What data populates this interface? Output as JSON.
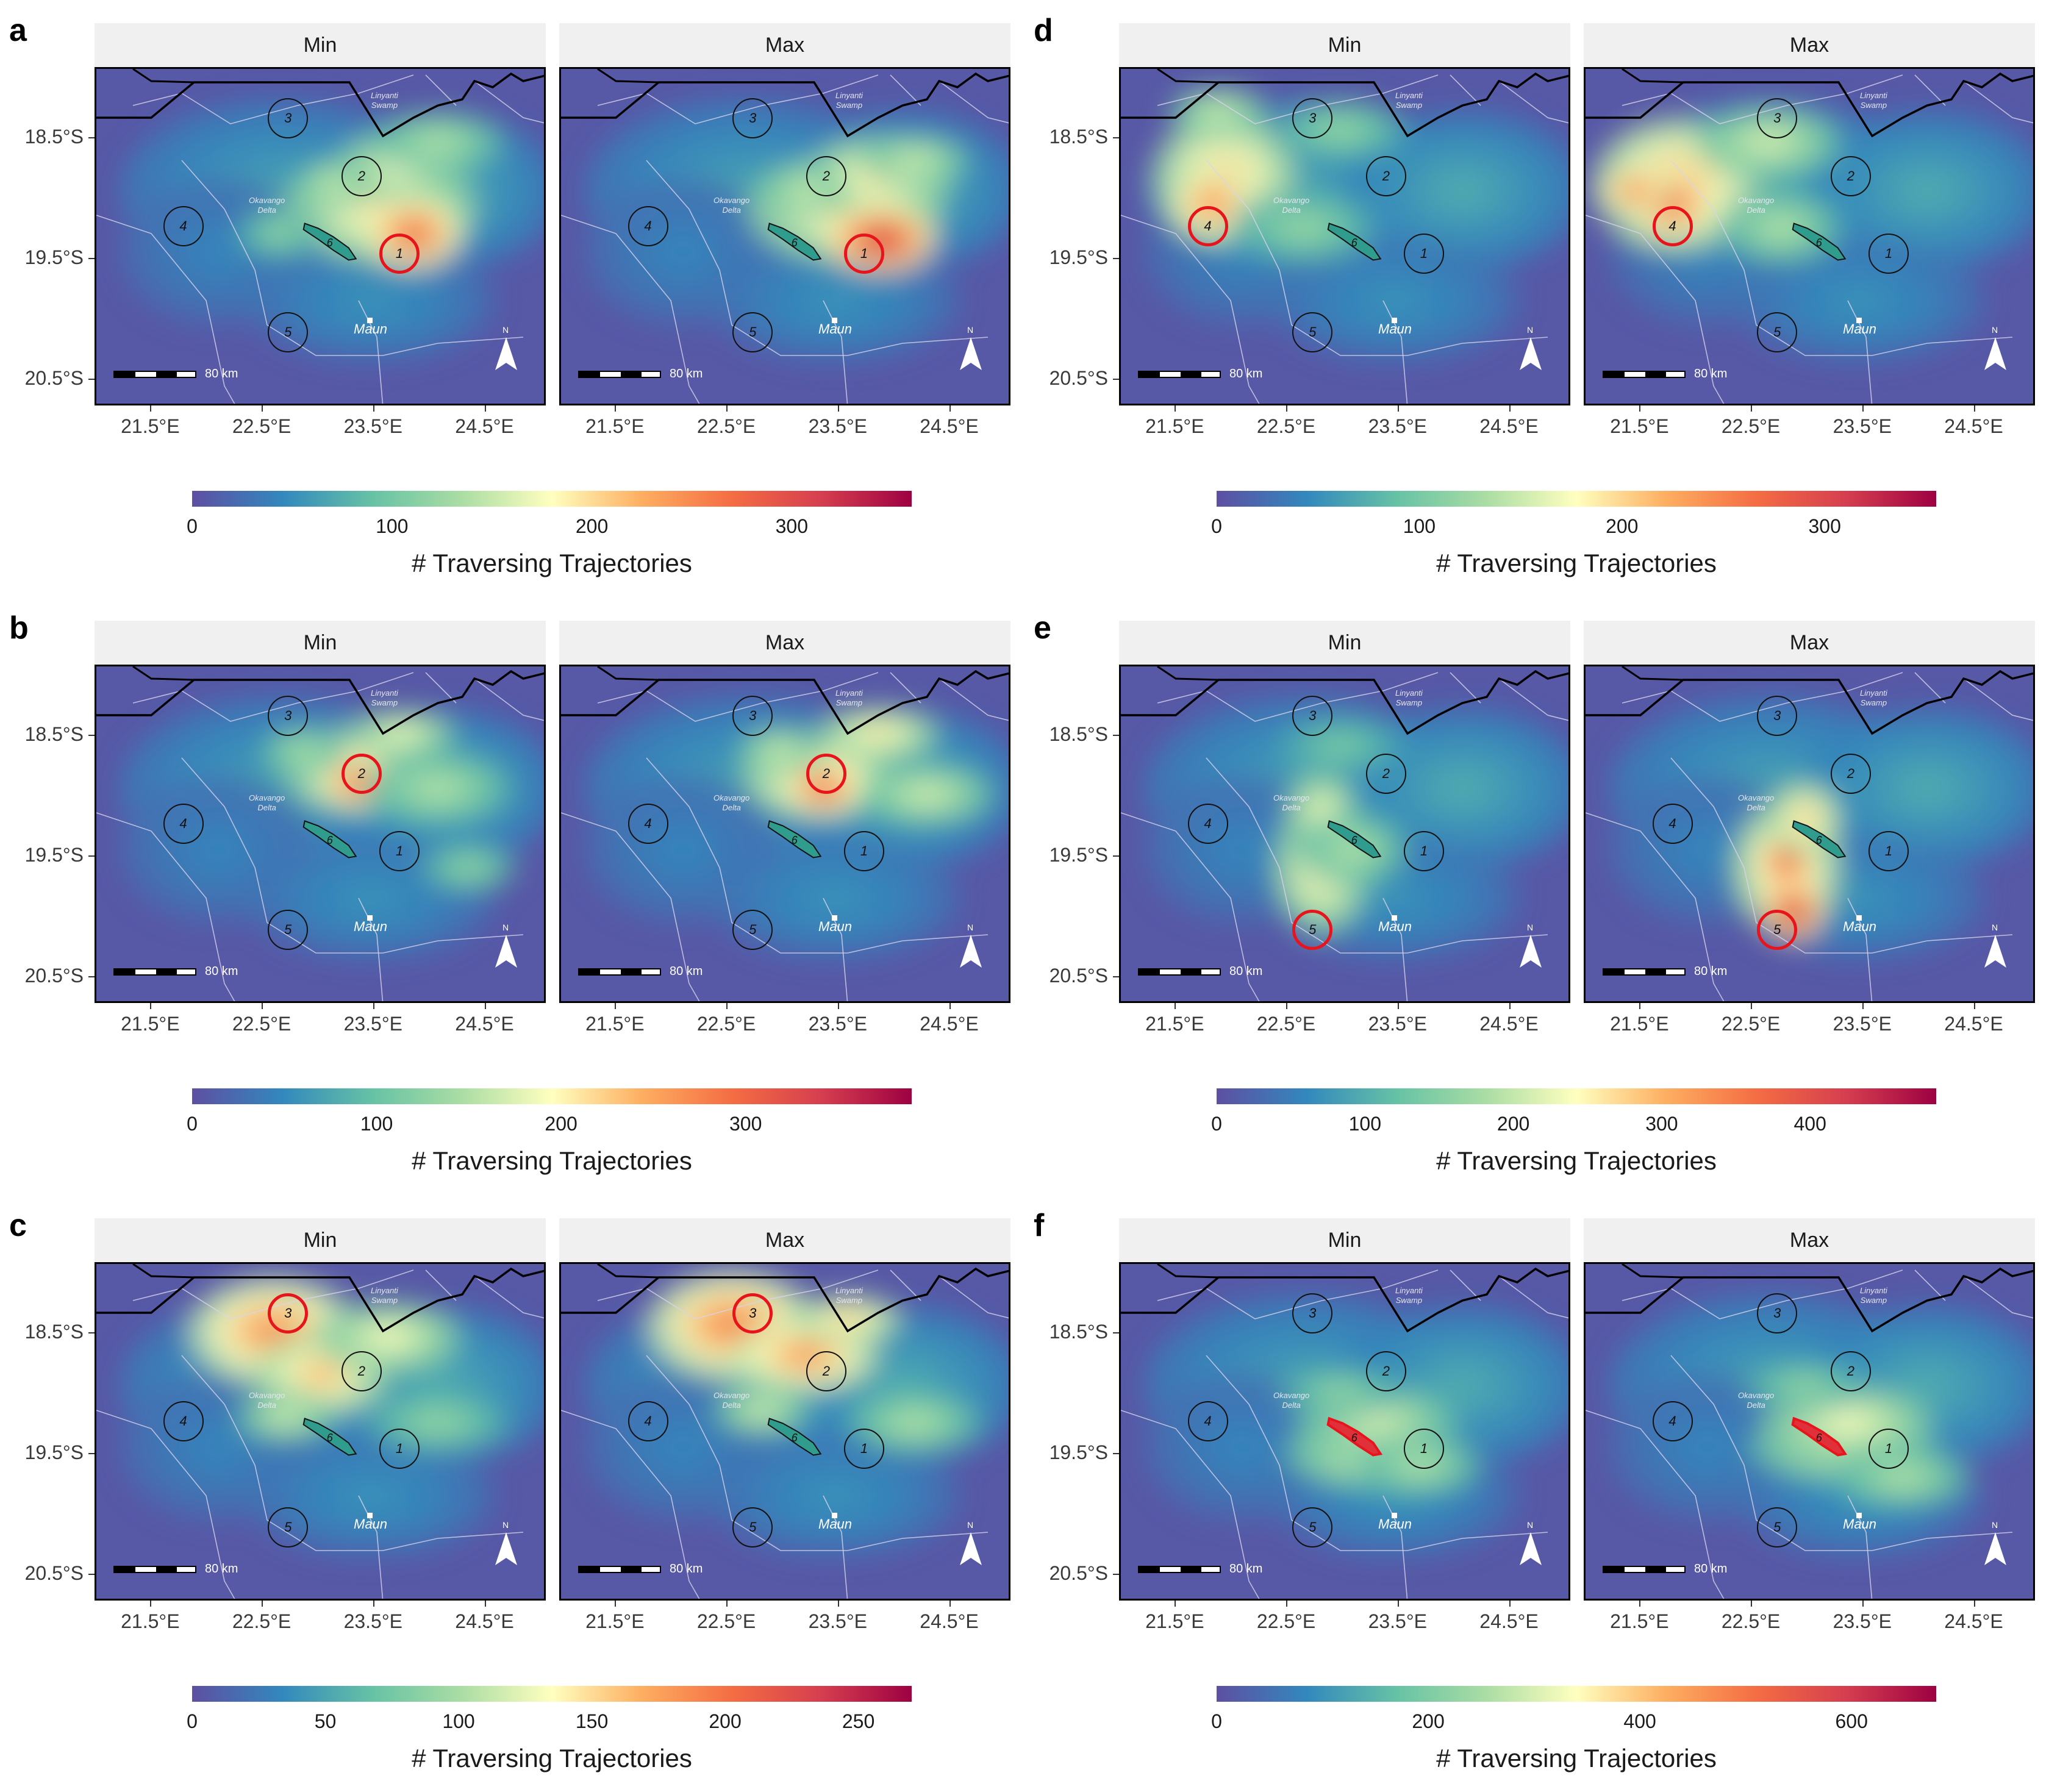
{
  "facets": [
    "Min",
    "Max"
  ],
  "y_axis_ticks": [
    "18.5°S",
    "19.5°S",
    "20.5°S"
  ],
  "x_axis_ticks": [
    "21.5°E",
    "22.5°E",
    "23.5°E",
    "24.5°E"
  ],
  "place_labels": {
    "okavango": "Okavango\nDelta",
    "linyanti": "Linyanti\nSwamp",
    "maun": "Maun"
  },
  "scale_bar": "80 km",
  "north_arrow": "N",
  "legend_title": "# Traversing Trajectories",
  "colormap": "Spectral (reversed): low #5e4fa2 → #3288bd → #66c2a5 → #abdda4 → #ffffbf → #fdae61 → #f46d43 → #d53e4f → high #9e0142",
  "chart_data": [
    {
      "panel": "a",
      "type": "heatmap",
      "highlighted_site": "1",
      "colorbar_ticks": [
        "0",
        "100",
        "200",
        "300"
      ],
      "colorbar_max": 360,
      "xlabel": "",
      "ylabel": ""
    },
    {
      "panel": "b",
      "type": "heatmap",
      "highlighted_site": "2",
      "colorbar_ticks": [
        "0",
        "100",
        "200",
        "300"
      ],
      "colorbar_max": 390,
      "xlabel": "",
      "ylabel": ""
    },
    {
      "panel": "c",
      "type": "heatmap",
      "highlighted_site": "3",
      "colorbar_ticks": [
        "0",
        "50",
        "100",
        "150",
        "200",
        "250"
      ],
      "colorbar_max": 270,
      "xlabel": "",
      "ylabel": ""
    },
    {
      "panel": "d",
      "type": "heatmap",
      "highlighted_site": "4",
      "colorbar_ticks": [
        "0",
        "100",
        "200",
        "300"
      ],
      "colorbar_max": 355,
      "xlabel": "",
      "ylabel": ""
    },
    {
      "panel": "e",
      "type": "heatmap",
      "highlighted_site": "5",
      "colorbar_ticks": [
        "0",
        "100",
        "200",
        "300",
        "400"
      ],
      "colorbar_max": 485,
      "xlabel": "",
      "ylabel": ""
    },
    {
      "panel": "f",
      "type": "heatmap",
      "highlighted_site": "6",
      "colorbar_ticks": [
        "0",
        "200",
        "400",
        "600"
      ],
      "colorbar_max": 680,
      "xlabel": "",
      "ylabel": ""
    }
  ],
  "sites": [
    "1",
    "2",
    "3",
    "4",
    "5",
    "6"
  ]
}
